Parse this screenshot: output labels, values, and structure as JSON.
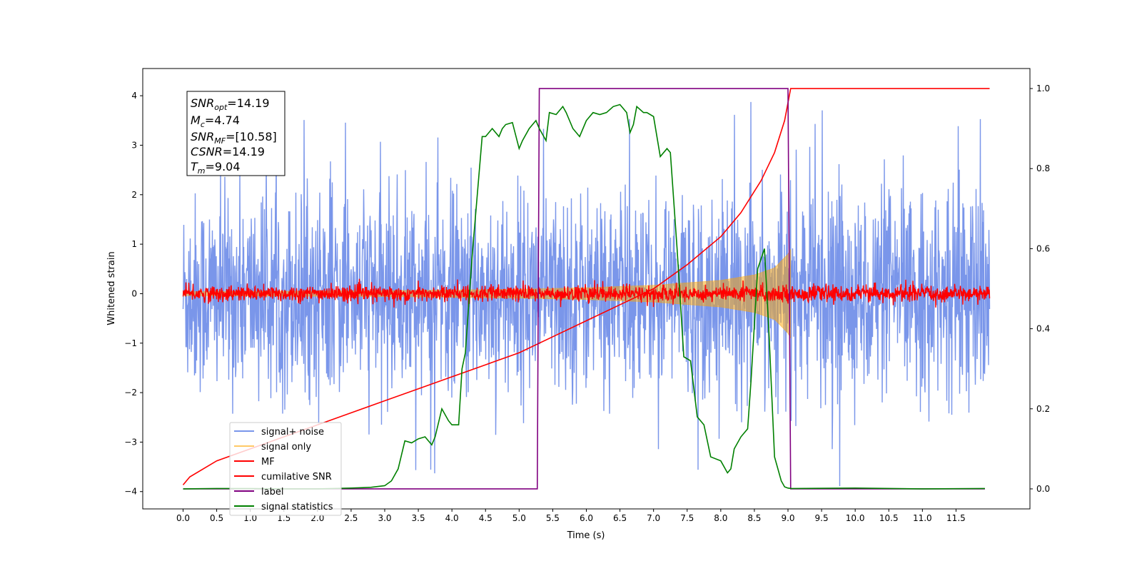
{
  "chart_data": {
    "type": "line",
    "xlabel": "Time (s)",
    "ylabel": "Whitened strain",
    "xlim": [
      -0.6,
      12.6
    ],
    "ylim": [
      -4.35,
      4.55
    ],
    "y2lim": [
      -0.05,
      1.05
    ],
    "x_ticks": [
      "0.0",
      "0.5",
      "1.0",
      "1.5",
      "2.0",
      "2.5",
      "3.0",
      "3.5",
      "4.0",
      "4.5",
      "5.0",
      "5.5",
      "6.0",
      "6.5",
      "7.0",
      "7.5",
      "8.0",
      "8.5",
      "9.0",
      "9.5",
      "10.0",
      "10.5",
      "11.0",
      "11.5"
    ],
    "y_ticks": [
      "4",
      "3",
      "2",
      "1",
      "0",
      "−1",
      "−2",
      "−3",
      "−4"
    ],
    "y2_ticks": [
      "1.0",
      "0.8",
      "0.6",
      "0.4",
      "0.2",
      "0.0"
    ],
    "legend_position": "lower-left",
    "grid": false,
    "annotation": [
      {
        "name": "SNR",
        "sub": "opt",
        "value": "=14.19"
      },
      {
        "name": "M",
        "sub": "c",
        "value": "=4.74"
      },
      {
        "name": "SNR",
        "sub": "MF",
        "value": "=[10.58]"
      },
      {
        "name": "CSNR",
        "sub": "",
        "value": "=14.19"
      },
      {
        "name": "T",
        "sub": "m",
        "value": "=9.04"
      }
    ],
    "series": [
      {
        "name": "signal+ noise",
        "axis": "left",
        "color": "#4169E1",
        "style": "noise",
        "x_range": [
          0,
          12.0
        ],
        "amplitude_sigma": 1.0,
        "amplitude_max": 3.9
      },
      {
        "name": "signal only",
        "axis": "left",
        "color": "#FFA500",
        "style": "chirp",
        "x_range": [
          0,
          9.04
        ],
        "envelope": [
          [
            0,
            0.04
          ],
          [
            3.0,
            0.06
          ],
          [
            5.0,
            0.09
          ],
          [
            6.0,
            0.12
          ],
          [
            7.0,
            0.17
          ],
          [
            8.0,
            0.27
          ],
          [
            8.5,
            0.38
          ],
          [
            8.8,
            0.52
          ],
          [
            9.0,
            0.8
          ],
          [
            9.04,
            0.9
          ]
        ]
      },
      {
        "name": "MF",
        "axis": "left",
        "color": "#FF0000",
        "style": "noise",
        "x_range": [
          0,
          12.0
        ],
        "amplitude_sigma": 0.08,
        "amplitude_max": 0.3
      },
      {
        "name": "cumilative SNR",
        "axis": "right",
        "color": "#FF0000",
        "x": [
          0,
          0.1,
          0.5,
          1.0,
          1.5,
          2.0,
          2.5,
          3.0,
          3.5,
          4.0,
          4.5,
          5.0,
          5.5,
          6.0,
          6.5,
          7.0,
          7.5,
          8.0,
          8.3,
          8.6,
          8.8,
          8.95,
          9.04,
          12.0
        ],
        "y": [
          0.01,
          0.03,
          0.07,
          0.1,
          0.13,
          0.16,
          0.19,
          0.22,
          0.25,
          0.28,
          0.31,
          0.34,
          0.38,
          0.42,
          0.46,
          0.5,
          0.56,
          0.63,
          0.69,
          0.77,
          0.84,
          0.92,
          1.0,
          1.0
        ]
      },
      {
        "name": "label",
        "axis": "right",
        "color": "#800080",
        "x": [
          0,
          5.27,
          5.3,
          9.0,
          9.04,
          11.93
        ],
        "y": [
          0,
          0,
          1,
          1,
          0,
          0
        ]
      },
      {
        "name": "signal statistics",
        "axis": "right",
        "color": "#008000",
        "x": [
          0,
          0.5,
          1.0,
          1.5,
          2.0,
          2.5,
          2.8,
          3.0,
          3.1,
          3.2,
          3.3,
          3.4,
          3.5,
          3.6,
          3.7,
          3.75,
          3.85,
          3.95,
          4.0,
          4.1,
          4.15,
          4.2,
          4.3,
          4.4,
          4.45,
          4.5,
          4.6,
          4.65,
          4.7,
          4.75,
          4.8,
          4.9,
          5.0,
          5.05,
          5.15,
          5.25,
          5.3,
          5.4,
          5.45,
          5.55,
          5.65,
          5.7,
          5.8,
          5.9,
          6.0,
          6.1,
          6.2,
          6.3,
          6.4,
          6.5,
          6.6,
          6.65,
          6.7,
          6.75,
          6.85,
          6.9,
          7.0,
          7.1,
          7.2,
          7.25,
          7.35,
          7.45,
          7.55,
          7.65,
          7.75,
          7.85,
          8.0,
          8.1,
          8.15,
          8.2,
          8.3,
          8.4,
          8.45,
          8.55,
          8.65,
          8.72,
          8.8,
          8.9,
          8.95,
          9.0,
          9.05,
          9.1,
          10.0,
          11.0,
          11.93
        ],
        "y": [
          0.0,
          0.001,
          0.001,
          0.0,
          0.0,
          0.002,
          0.004,
          0.008,
          0.02,
          0.05,
          0.12,
          0.115,
          0.125,
          0.13,
          0.11,
          0.13,
          0.2,
          0.17,
          0.16,
          0.16,
          0.3,
          0.34,
          0.58,
          0.78,
          0.88,
          0.88,
          0.9,
          0.89,
          0.88,
          0.9,
          0.91,
          0.915,
          0.85,
          0.87,
          0.9,
          0.92,
          0.9,
          0.87,
          0.94,
          0.935,
          0.955,
          0.94,
          0.9,
          0.88,
          0.92,
          0.94,
          0.935,
          0.94,
          0.955,
          0.96,
          0.94,
          0.89,
          0.91,
          0.955,
          0.94,
          0.94,
          0.93,
          0.83,
          0.85,
          0.84,
          0.6,
          0.33,
          0.32,
          0.18,
          0.16,
          0.08,
          0.07,
          0.04,
          0.05,
          0.1,
          0.13,
          0.15,
          0.27,
          0.55,
          0.6,
          0.38,
          0.08,
          0.02,
          0.005,
          0.002,
          0.001,
          0.001,
          0.002,
          0.0,
          0.001
        ]
      }
    ]
  }
}
